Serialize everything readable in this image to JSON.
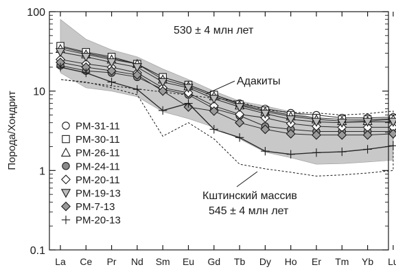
{
  "chart_data": {
    "type": "line",
    "ylabel": "Порода/Хондрит",
    "xlabel": "",
    "y_scale": "log",
    "ylim": [
      0.1,
      100
    ],
    "y_ticks": [
      {
        "value": 100,
        "label": "100"
      },
      {
        "value": 10,
        "label": "10"
      },
      {
        "value": 1,
        "label": "1"
      },
      {
        "value": 0.1,
        "label": "0.1"
      }
    ],
    "categories": [
      "La",
      "Ce",
      "Pr",
      "Nd",
      "Sm",
      "Eu",
      "Gd",
      "Tb",
      "Dy",
      "Ho",
      "Er",
      "Tm",
      "Yb",
      "Lu"
    ],
    "legend_position": "bottom-left",
    "annotations": {
      "age_main": "530 ± 4 млн лет",
      "adakites": "Адакиты",
      "massif_line1": "Кштинский массив",
      "massif_line2": "545 ± 4 млн лет"
    },
    "adakite_field": {
      "upper": [
        80,
        45,
        33,
        27,
        19,
        14,
        10,
        7.5,
        6.5,
        5.5,
        4.5,
        4.2,
        4.3,
        4.5
      ],
      "lower": [
        17,
        11,
        10,
        8.5,
        5.5,
        4.5,
        3.5,
        2.5,
        1.7,
        1.45,
        1.2,
        1.22,
        1.28,
        1.35
      ]
    },
    "massif_field": {
      "upper": [
        null,
        null,
        null,
        null,
        null,
        null,
        null,
        7.4,
        5.8,
        5.4,
        5.3,
        5.0,
        5.2,
        5.6
      ],
      "lower": [
        14,
        13,
        11,
        9,
        2.7,
        4.0,
        2.5,
        1.2,
        1.05,
        0.95,
        0.85,
        0.88,
        0.93,
        1.0
      ]
    },
    "series": [
      {
        "name": "PM-31-11",
        "marker": "circle-open",
        "values": [
          36,
          30,
          26,
          22,
          15,
          12,
          9,
          7,
          6,
          5.3,
          5,
          4.6,
          4.6,
          4.7
        ]
      },
      {
        "name": "PM-30-11",
        "marker": "square-open",
        "values": [
          37,
          31,
          27,
          22,
          15,
          12,
          9,
          6.8,
          5.7,
          5,
          4.6,
          4.4,
          4.4,
          4.5
        ]
      },
      {
        "name": "PM-26-11",
        "marker": "triangle-open",
        "values": [
          34,
          29,
          25,
          22,
          14,
          11.5,
          8.6,
          6.6,
          5.5,
          4.8,
          4.4,
          4.2,
          4.2,
          4.4
        ]
      },
      {
        "name": "PM-24-11",
        "marker": "circle-gray",
        "values": [
          21,
          18,
          17,
          15,
          10.5,
          9,
          6,
          4.9,
          3.6,
          3.3,
          3.1,
          3.1,
          3.1,
          3.1
        ]
      },
      {
        "name": "PM-20-11",
        "marker": "diamond-open",
        "values": [
          25,
          22,
          20,
          17,
          11,
          9.5,
          6.5,
          5.1,
          4.6,
          3.9,
          3.6,
          3.5,
          3.5,
          3.5
        ]
      },
      {
        "name": "PM-19-13",
        "marker": "triangle-down-open",
        "values": [
          31,
          27,
          23,
          20,
          13,
          11,
          8,
          6.3,
          5.2,
          4.4,
          4.1,
          4,
          4.1,
          4.1
        ]
      },
      {
        "name": "PM-7-13",
        "marker": "diamond-gray",
        "values": [
          23,
          20,
          18,
          16,
          10,
          6.3,
          5.6,
          4,
          3.3,
          2.9,
          2.8,
          2.8,
          2.8,
          2.9
        ]
      },
      {
        "name": "PM-20-13",
        "marker": "plus",
        "values": [
          20,
          17,
          13,
          10.5,
          5.7,
          7,
          3.3,
          2.6,
          1.75,
          1.6,
          1.68,
          1.72,
          1.85,
          2.05
        ]
      }
    ]
  }
}
